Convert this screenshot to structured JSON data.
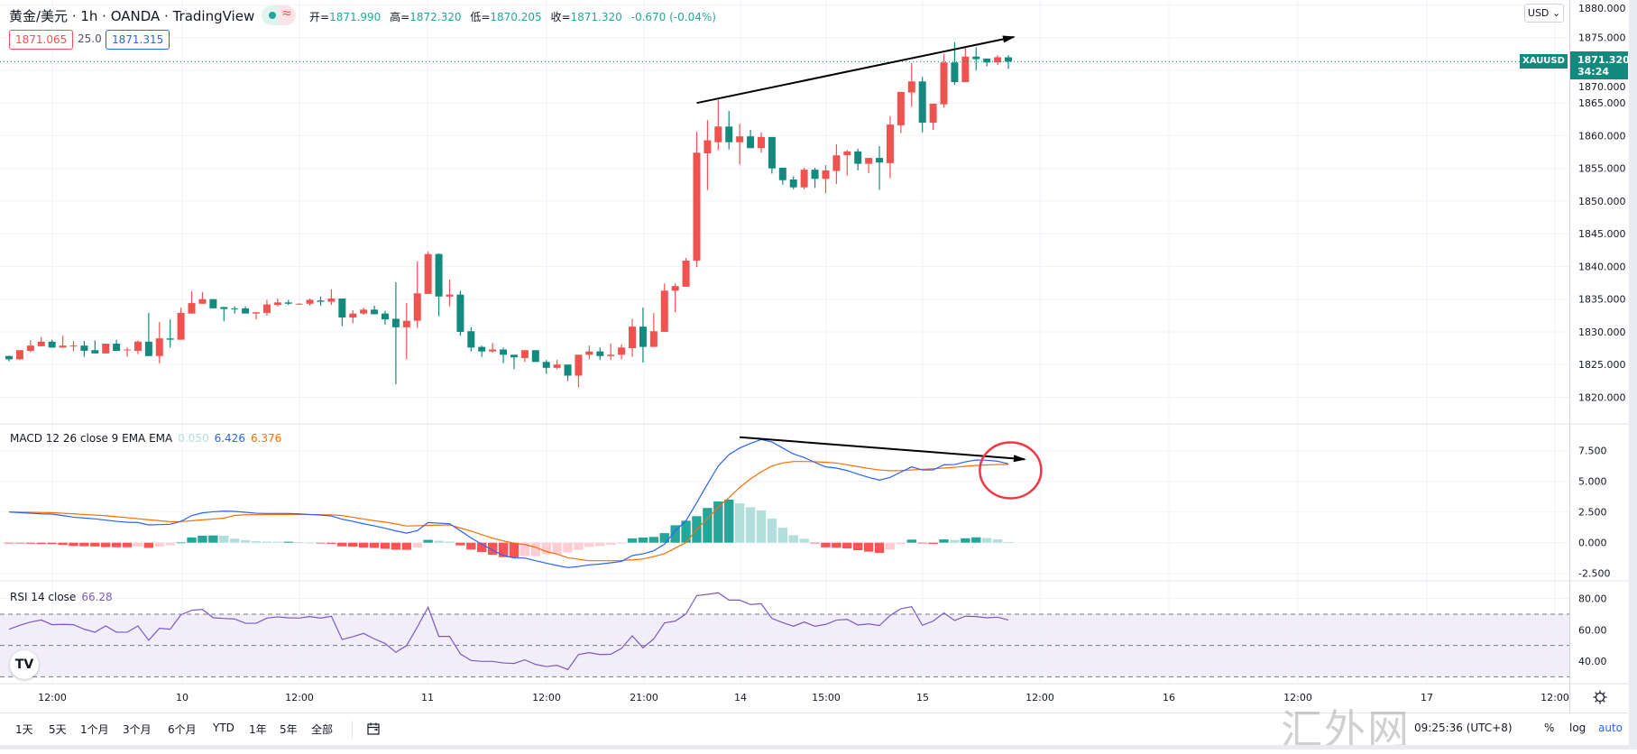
{
  "header": {
    "title": "黄金/美元 · 1h · OANDA · TradingView",
    "badge_icon": "market-open-dot-icon",
    "badge_wave": "≈",
    "ohlc": [
      {
        "k": "开=",
        "v": "1871.990"
      },
      {
        "k": "高=",
        "v": "1872.320"
      },
      {
        "k": "低=",
        "v": "1870.205"
      },
      {
        "k": "收=",
        "v": "1871.320"
      }
    ],
    "change": "-0.670 (-0.04%)",
    "bid": "1871.065",
    "spread": "25.0",
    "ask": "1871.315"
  },
  "price_axis": {
    "currency": "USD ⌄",
    "labels": [
      "1880.000",
      "1875.000",
      "1870.000",
      "1865.000",
      "1860.000",
      "1855.000",
      "1850.000",
      "1845.000",
      "1840.000",
      "1835.000",
      "1830.000",
      "1825.000",
      "1820.000"
    ],
    "symbol_tag": "XAUUSD",
    "last_price": "1871.320",
    "countdown": "34:24"
  },
  "macd": {
    "title": "MACD 12 26 close 9 EMA EMA",
    "hist_value": "0.050",
    "macd_value": "6.426",
    "signal_value": "6.376",
    "labels": [
      "7.500",
      "5.000",
      "2.500",
      "0.000",
      "-2.500"
    ]
  },
  "rsi": {
    "title": "RSI 14 close",
    "value": "66.28",
    "labels": [
      "80.00",
      "60.00",
      "40.00"
    ]
  },
  "time_axis": {
    "labels": [
      "12:00",
      "10",
      "12:00",
      "11",
      "12:00",
      "21:00",
      "14",
      "15:00",
      "15",
      "12:00",
      "16",
      "12:00",
      "17",
      "12:00"
    ]
  },
  "toolbar": {
    "ranges": [
      "1天",
      "5天",
      "1个月",
      "3个月",
      "6个月",
      "YTD",
      "1年",
      "5年",
      "全部"
    ],
    "clock": "09:25:36 (UTC+8)",
    "percent": "%",
    "log": "log",
    "auto": "auto"
  },
  "logo": "TV",
  "watermark": "汇外网",
  "colors": {
    "up": "#ef5350",
    "down": "#138a7e",
    "macd": "#2962ff",
    "signal": "#ff6d00",
    "rsi": "#7e57c2",
    "annotation_arrow": "#000000",
    "annotation_circle": "#f23645"
  },
  "chart_data": {
    "type": "candlestick",
    "symbol": "XAUUSD",
    "interval": "1h",
    "ylim": [
      1818,
      1880.5
    ],
    "candles_ohlc": [
      [
        1826.3,
        1826.4,
        1825.5,
        1825.8
      ],
      [
        1825.8,
        1827.2,
        1825.7,
        1827.2
      ],
      [
        1827.1,
        1828.7,
        1826.9,
        1827.9
      ],
      [
        1827.8,
        1829.2,
        1827.8,
        1828.5
      ],
      [
        1828.5,
        1828.8,
        1827.6,
        1827.6
      ],
      [
        1827.6,
        1829.4,
        1827.6,
        1827.9
      ],
      [
        1827.9,
        1828.6,
        1827.0,
        1827.9
      ],
      [
        1827.9,
        1828.6,
        1826.2,
        1827.1
      ],
      [
        1827.2,
        1828.7,
        1826.7,
        1826.7
      ],
      [
        1826.7,
        1828.2,
        1826.7,
        1828.2
      ],
      [
        1828.2,
        1828.8,
        1827.1,
        1827.1
      ],
      [
        1827.2,
        1827.6,
        1826.2,
        1827.3
      ],
      [
        1827.1,
        1828.7,
        1826.6,
        1828.5
      ],
      [
        1828.5,
        1832.9,
        1826.3,
        1826.3
      ],
      [
        1826.3,
        1831.5,
        1825.2,
        1829.0
      ],
      [
        1829.0,
        1831.9,
        1827.6,
        1828.8
      ],
      [
        1828.8,
        1833.7,
        1828.8,
        1832.9
      ],
      [
        1832.8,
        1836.2,
        1832.8,
        1834.4
      ],
      [
        1834.3,
        1836.1,
        1834.3,
        1835.0
      ],
      [
        1835.0,
        1835.0,
        1833.6,
        1833.6
      ],
      [
        1833.8,
        1833.8,
        1831.6,
        1833.5
      ],
      [
        1833.6,
        1833.9,
        1832.8,
        1833.5
      ],
      [
        1833.6,
        1833.9,
        1832.8,
        1832.8
      ],
      [
        1832.8,
        1833.0,
        1831.9,
        1833.0
      ],
      [
        1832.9,
        1834.9,
        1832.5,
        1834.2
      ],
      [
        1834.1,
        1835.1,
        1833.9,
        1834.5
      ],
      [
        1834.5,
        1834.9,
        1834.1,
        1834.3
      ],
      [
        1834.3,
        1834.4,
        1834.2,
        1834.3
      ],
      [
        1834.3,
        1835.1,
        1834.0,
        1834.9
      ],
      [
        1834.8,
        1835.4,
        1834.0,
        1834.6
      ],
      [
        1834.6,
        1836.5,
        1834.1,
        1835.1
      ],
      [
        1835.1,
        1835.1,
        1830.9,
        1832.2
      ],
      [
        1832.2,
        1833.3,
        1831.3,
        1832.8
      ],
      [
        1832.8,
        1833.7,
        1832.6,
        1833.4
      ],
      [
        1833.4,
        1834.0,
        1832.7,
        1832.7
      ],
      [
        1832.8,
        1833.2,
        1831.1,
        1831.9
      ],
      [
        1832.0,
        1837.6,
        1822.0,
        1830.7
      ],
      [
        1830.7,
        1834.4,
        1825.8,
        1831.7
      ],
      [
        1831.7,
        1840.8,
        1830.6,
        1835.9
      ],
      [
        1835.8,
        1842.3,
        1835.8,
        1841.9
      ],
      [
        1841.9,
        1842.0,
        1832.4,
        1835.4
      ],
      [
        1835.4,
        1838.0,
        1833.9,
        1835.7
      ],
      [
        1835.7,
        1836.3,
        1829.4,
        1830.0
      ],
      [
        1830.1,
        1830.7,
        1827.0,
        1827.6
      ],
      [
        1827.7,
        1827.9,
        1826.2,
        1827.0
      ],
      [
        1827.0,
        1828.3,
        1826.8,
        1827.3
      ],
      [
        1827.3,
        1827.6,
        1825.2,
        1826.5
      ],
      [
        1826.5,
        1826.5,
        1824.3,
        1826.1
      ],
      [
        1826.0,
        1827.2,
        1825.4,
        1827.2
      ],
      [
        1827.2,
        1827.2,
        1825.4,
        1825.4
      ],
      [
        1825.4,
        1825.7,
        1823.6,
        1824.5
      ],
      [
        1824.5,
        1825.7,
        1824.3,
        1825.0
      ],
      [
        1825.0,
        1825.0,
        1822.5,
        1823.3
      ],
      [
        1823.3,
        1826.5,
        1821.5,
        1826.5
      ],
      [
        1826.5,
        1827.9,
        1825.8,
        1827.0
      ],
      [
        1827.0,
        1827.6,
        1825.7,
        1826.3
      ],
      [
        1826.3,
        1828.2,
        1825.7,
        1826.5
      ],
      [
        1826.5,
        1828.1,
        1825.8,
        1827.6
      ],
      [
        1827.5,
        1832.0,
        1826.2,
        1830.8
      ],
      [
        1830.8,
        1833.7,
        1825.3,
        1827.7
      ],
      [
        1827.7,
        1832.9,
        1827.7,
        1830.1
      ],
      [
        1830.0,
        1837.4,
        1830.0,
        1836.3
      ],
      [
        1836.3,
        1837.4,
        1833.0,
        1837.0
      ],
      [
        1836.9,
        1841.3,
        1836.9,
        1840.9
      ],
      [
        1840.9,
        1860.6,
        1839.9,
        1857.4
      ],
      [
        1857.3,
        1862.4,
        1851.7,
        1859.3
      ],
      [
        1859.0,
        1865.5,
        1857.8,
        1861.4
      ],
      [
        1861.4,
        1863.8,
        1857.9,
        1859.0
      ],
      [
        1859.0,
        1861.8,
        1855.6,
        1859.9
      ],
      [
        1859.9,
        1860.9,
        1858.1,
        1858.1
      ],
      [
        1858.1,
        1860.5,
        1857.4,
        1859.8
      ],
      [
        1859.8,
        1859.8,
        1854.2,
        1855.0
      ],
      [
        1855.1,
        1855.1,
        1852.5,
        1853.2
      ],
      [
        1853.3,
        1853.8,
        1851.8,
        1852.1
      ],
      [
        1852.1,
        1855.1,
        1851.8,
        1854.8
      ],
      [
        1854.8,
        1855.1,
        1852.0,
        1853.4
      ],
      [
        1853.4,
        1855.5,
        1851.2,
        1854.7
      ],
      [
        1854.6,
        1858.7,
        1852.6,
        1857.0
      ],
      [
        1857.0,
        1857.8,
        1853.9,
        1857.6
      ],
      [
        1857.6,
        1858.0,
        1854.7,
        1855.7
      ],
      [
        1855.7,
        1856.6,
        1854.3,
        1856.6
      ],
      [
        1856.6,
        1858.4,
        1851.7,
        1855.9
      ],
      [
        1855.8,
        1863.0,
        1853.5,
        1861.7
      ],
      [
        1861.6,
        1866.7,
        1860.4,
        1866.7
      ],
      [
        1866.6,
        1871.1,
        1864.4,
        1868.3
      ],
      [
        1868.3,
        1869.0,
        1860.5,
        1862.0
      ],
      [
        1862.0,
        1864.9,
        1860.9,
        1864.9
      ],
      [
        1864.8,
        1872.5,
        1864.3,
        1871.2
      ],
      [
        1871.2,
        1874.3,
        1867.8,
        1868.2
      ],
      [
        1868.2,
        1873.6,
        1868.2,
        1872.1
      ],
      [
        1872.1,
        1873.5,
        1870.0,
        1871.7
      ],
      [
        1871.8,
        1871.8,
        1870.6,
        1871.2
      ],
      [
        1871.2,
        1872.3,
        1870.8,
        1872.0
      ],
      [
        1871.99,
        1872.32,
        1870.205,
        1871.32
      ]
    ],
    "last_price": 1871.32,
    "macd_series": {
      "ylim": [
        -3.0,
        9.0
      ],
      "macd": [
        2.5,
        2.45,
        2.4,
        2.35,
        2.33,
        2.21,
        2.08,
        2.01,
        1.94,
        1.84,
        1.74,
        1.67,
        1.64,
        1.45,
        1.47,
        1.5,
        1.74,
        2.21,
        2.43,
        2.52,
        2.57,
        2.55,
        2.48,
        2.4,
        2.38,
        2.38,
        2.38,
        2.35,
        2.3,
        2.25,
        2.18,
        1.91,
        1.74,
        1.54,
        1.37,
        1.18,
        0.96,
        0.78,
        0.98,
        1.64,
        1.59,
        1.54,
        0.98,
        0.39,
        -0.12,
        -0.61,
        -1.03,
        -1.25,
        -1.25,
        -1.47,
        -1.67,
        -1.86,
        -2.03,
        -1.94,
        -1.81,
        -1.74,
        -1.64,
        -1.52,
        -1.05,
        -0.91,
        -0.66,
        -0.12,
        0.98,
        1.79,
        3.26,
        4.78,
        6.25,
        7.18,
        7.72,
        8.09,
        8.41,
        8.21,
        7.72,
        7.23,
        6.94,
        6.54,
        6.18,
        6.08,
        5.88,
        5.59,
        5.32,
        5.1,
        5.32,
        5.76,
        6.18,
        5.93,
        5.93,
        6.35,
        6.37,
        6.59,
        6.74,
        6.72,
        6.64,
        6.426
      ],
      "signal": [
        2.51,
        2.49,
        2.48,
        2.46,
        2.45,
        2.4,
        2.35,
        2.3,
        2.25,
        2.2,
        2.11,
        2.04,
        1.95,
        1.87,
        1.79,
        1.71,
        1.72,
        1.79,
        1.86,
        1.93,
        2.0,
        2.22,
        2.28,
        2.28,
        2.29,
        2.3,
        2.3,
        2.3,
        2.29,
        2.28,
        2.27,
        2.21,
        2.07,
        1.93,
        1.79,
        1.68,
        1.53,
        1.36,
        1.38,
        1.41,
        1.43,
        1.45,
        1.2,
        0.95,
        0.65,
        0.37,
        0.15,
        -0.05,
        -0.15,
        -0.37,
        -0.72,
        -0.93,
        -1.23,
        -1.35,
        -1.47,
        -1.47,
        -1.47,
        -1.45,
        -1.4,
        -1.33,
        -1.13,
        -0.9,
        -0.44,
        0.0,
        1.1,
        1.95,
        2.89,
        3.67,
        4.51,
        5.2,
        5.78,
        6.25,
        6.5,
        6.62,
        6.62,
        6.6,
        6.56,
        6.49,
        6.35,
        6.2,
        6.05,
        5.93,
        5.87,
        5.88,
        5.93,
        5.98,
        6.03,
        6.08,
        6.15,
        6.23,
        6.3,
        6.34,
        6.37,
        6.376
      ]
    },
    "rsi_series": {
      "ylim": [
        20,
        90
      ],
      "bands": [
        70,
        50,
        30
      ],
      "values": [
        60.4,
        62.9,
        65.0,
        66.3,
        63.3,
        63.5,
        63.3,
        60.4,
        58.5,
        62.5,
        58.5,
        58.5,
        62.5,
        53.3,
        61.0,
        60.4,
        69.6,
        72.5,
        73.1,
        67.7,
        67.3,
        66.9,
        64.2,
        64.2,
        67.5,
        68.3,
        67.7,
        67.5,
        68.5,
        67.5,
        68.7,
        53.8,
        55.6,
        57.7,
        54.2,
        51.3,
        45.6,
        50.0,
        61.9,
        74.4,
        55.8,
        55.8,
        44.6,
        40.4,
        39.8,
        39.8,
        38.8,
        38.5,
        40.8,
        37.9,
        36.5,
        37.3,
        34.6,
        44.2,
        45.4,
        44.2,
        44.4,
        48.1,
        56.2,
        48.5,
        54.2,
        64.4,
        65.6,
        70.2,
        81.9,
        82.7,
        83.7,
        79.0,
        79.0,
        76.2,
        76.7,
        67.3,
        64.6,
        62.3,
        65.0,
        62.3,
        63.5,
        66.2,
        66.7,
        63.1,
        63.8,
        62.7,
        69.2,
        73.5,
        74.8,
        62.9,
        65.6,
        70.8,
        66.0,
        68.7,
        68.5,
        67.7,
        68.1,
        66.28
      ]
    },
    "annotations": [
      {
        "type": "trend-arrow",
        "pane": "price",
        "from": {
          "candle": 65,
          "price": 1865.0
        },
        "to": {
          "candle": 94.5,
          "price": 1875.1
        }
      },
      {
        "type": "trend-arrow",
        "pane": "macd",
        "from": {
          "candle": 69,
          "value": 8.6
        },
        "to": {
          "candle": 95.5,
          "value": 6.8
        }
      },
      {
        "type": "circle",
        "pane": "macd",
        "center": {
          "candle": 94.2,
          "value": 5.9
        }
      }
    ]
  }
}
